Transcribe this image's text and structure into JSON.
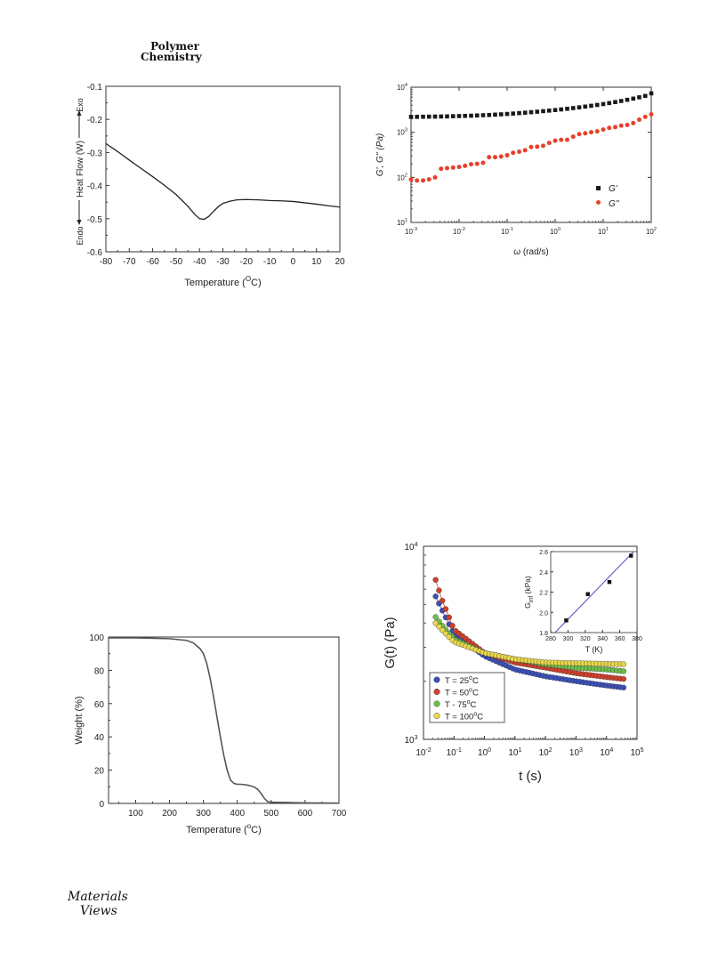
{
  "header": {
    "line1": "Polymer",
    "line2": "Chemistry"
  },
  "footer_logo": {
    "line1": "Materials",
    "line2": "Views"
  },
  "chart_data": [
    {
      "id": "dsc",
      "type": "line",
      "xlabel": "Temperature (",
      "xlabel_sup": "O",
      "xlabel_end": "C)",
      "ylabel_main": "Heat Flow (W)",
      "ylabel_exo": "Exo",
      "ylabel_endo": "Endo",
      "xlim": [
        -80,
        20
      ],
      "ylim": [
        -0.6,
        -0.1
      ],
      "x_ticks": [
        "-80",
        "-70",
        "-60",
        "-50",
        "-40",
        "-30",
        "-20",
        "-10",
        "0",
        "10",
        "20"
      ],
      "y_ticks": [
        "-0.6",
        "-0.5",
        "-0.4",
        "-0.3",
        "-0.2",
        "-0.1"
      ],
      "series": [
        {
          "x": [
            -80,
            -75,
            -70,
            -65,
            -60,
            -55,
            -50,
            -45,
            -42,
            -40,
            -38,
            -36,
            -34,
            -32,
            -30,
            -27,
            -24,
            -20,
            -15,
            -10,
            -5,
            0,
            5,
            10,
            15,
            20
          ],
          "y": [
            -0.273,
            -0.297,
            -0.323,
            -0.348,
            -0.373,
            -0.399,
            -0.427,
            -0.462,
            -0.487,
            -0.5,
            -0.502,
            -0.493,
            -0.478,
            -0.464,
            -0.454,
            -0.447,
            -0.443,
            -0.442,
            -0.443,
            -0.445,
            -0.446,
            -0.448,
            -0.452,
            -0.456,
            -0.461,
            -0.465
          ]
        }
      ]
    },
    {
      "id": "rheology",
      "type": "scatter",
      "xlabel_omega": "ω",
      "xlabel_rest": " (rad/s)",
      "ylabel": "G', G'' (Pa)",
      "log_x": true,
      "log_y": true,
      "xlim": [
        0.001,
        100
      ],
      "ylim": [
        10,
        10000
      ],
      "x_ticks": [
        {
          "b": "10",
          "e": "-3"
        },
        {
          "b": "10",
          "e": "-2"
        },
        {
          "b": "10",
          "e": "-1"
        },
        {
          "b": "10",
          "e": "0"
        },
        {
          "b": "10",
          "e": "1"
        },
        {
          "b": "10",
          "e": "2"
        }
      ],
      "y_ticks": [
        {
          "b": "10",
          "e": "1"
        },
        {
          "b": "10",
          "e": "2"
        },
        {
          "b": "10",
          "e": "3"
        },
        {
          "b": "10",
          "e": "4"
        }
      ],
      "legend": {
        "placement": "bottom-right"
      },
      "series": [
        {
          "name": "G'",
          "color": "#1a1a1a",
          "marker": "square",
          "x": [
            0.001,
            0.00133,
            0.00178,
            0.00237,
            0.00316,
            0.00422,
            0.00562,
            0.0075,
            0.01,
            0.0133,
            0.0178,
            0.0237,
            0.0316,
            0.0422,
            0.0562,
            0.075,
            0.1,
            0.133,
            0.178,
            0.237,
            0.316,
            0.422,
            0.562,
            0.75,
            1,
            1.33,
            1.78,
            2.37,
            3.16,
            4.22,
            5.62,
            7.5,
            10,
            13.3,
            17.8,
            23.7,
            31.6,
            42.2,
            56.2,
            75,
            100
          ],
          "y": [
            2200,
            2200,
            2210,
            2220,
            2230,
            2240,
            2250,
            2270,
            2290,
            2310,
            2330,
            2360,
            2390,
            2420,
            2460,
            2500,
            2550,
            2600,
            2660,
            2720,
            2790,
            2860,
            2940,
            3020,
            3110,
            3210,
            3320,
            3440,
            3570,
            3710,
            3870,
            4040,
            4230,
            4440,
            4680,
            4950,
            5250,
            5580,
            5960,
            6400,
            7300
          ]
        },
        {
          "name": "G''",
          "color": "#e8402a",
          "marker": "circle",
          "x": [
            0.001,
            0.00133,
            0.00178,
            0.00237,
            0.00316,
            0.00422,
            0.00562,
            0.0075,
            0.01,
            0.0133,
            0.0178,
            0.0237,
            0.0316,
            0.0422,
            0.0562,
            0.075,
            0.1,
            0.133,
            0.178,
            0.237,
            0.316,
            0.422,
            0.562,
            0.75,
            1,
            1.33,
            1.78,
            2.37,
            3.16,
            4.22,
            5.62,
            7.5,
            10,
            13.3,
            17.8,
            23.7,
            31.6,
            42.2,
            56.2,
            75,
            100
          ],
          "y": [
            90,
            85,
            85,
            90,
            100,
            155,
            160,
            165,
            170,
            180,
            195,
            200,
            210,
            280,
            280,
            290,
            310,
            350,
            370,
            400,
            470,
            480,
            500,
            580,
            650,
            680,
            680,
            800,
            910,
            950,
            1000,
            1050,
            1150,
            1250,
            1300,
            1400,
            1450,
            1600,
            1900,
            2200,
            2500
          ]
        }
      ]
    },
    {
      "id": "tga",
      "type": "line",
      "xlabel": "Temperature (",
      "xlabel_sup": "o",
      "xlabel_end": "C)",
      "ylabel": "Weight (%)",
      "xlim": [
        20,
        700
      ],
      "ylim": [
        0,
        100
      ],
      "x_ticks": [
        "100",
        "200",
        "300",
        "400",
        "500",
        "600",
        "700"
      ],
      "y_ticks": [
        "0",
        "20",
        "40",
        "60",
        "80",
        "100"
      ],
      "series": [
        {
          "x": [
            20,
            100,
            200,
            250,
            270,
            290,
            300,
            310,
            320,
            330,
            340,
            350,
            360,
            370,
            380,
            390,
            400,
            410,
            420,
            430,
            440,
            450,
            460,
            470,
            480,
            490,
            500,
            550,
            600,
            700
          ],
          "y": [
            99.5,
            99.5,
            99,
            98,
            96.5,
            93,
            90,
            84,
            75,
            64,
            52,
            40,
            29,
            20,
            14,
            12,
            11.5,
            11.5,
            11.3,
            11,
            10.5,
            9.8,
            8.5,
            6,
            3,
            1,
            0.7,
            0.5,
            0.3,
            0.2
          ]
        }
      ]
    },
    {
      "id": "relaxation",
      "type": "scatter",
      "xlabel": "t (s)",
      "ylabel": "G(t)  (Pa)",
      "log_x": true,
      "log_y": true,
      "xlim": [
        0.01,
        100000
      ],
      "ylim": [
        1000,
        10000
      ],
      "x_ticks": [
        {
          "b": "10",
          "e": "-2"
        },
        {
          "b": "10",
          "e": "-1"
        },
        {
          "b": "10",
          "e": "0"
        },
        {
          "b": "10",
          "e": "1"
        },
        {
          "b": "10",
          "e": "2"
        },
        {
          "b": "10",
          "e": "3"
        },
        {
          "b": "10",
          "e": "4"
        },
        {
          "b": "10",
          "e": "5"
        }
      ],
      "y_ticks": [
        {
          "b": "10",
          "e": "3"
        },
        {
          "b": "10",
          "e": "4"
        }
      ],
      "legend": {
        "placement": "bottom-left"
      },
      "series": [
        {
          "label_pre": "T = 25",
          "label_sup": "o",
          "label_post": "C",
          "color": "#3a4fb8",
          "x": [
            0.025,
            0.04,
            0.1,
            1,
            10,
            100,
            1000,
            10000,
            40000
          ],
          "y": [
            5500,
            4700,
            3500,
            2700,
            2300,
            2120,
            2000,
            1900,
            1850
          ]
        },
        {
          "label_pre": "T = 50",
          "label_sup": "o",
          "label_post": "C",
          "color": "#d0402a",
          "x": [
            0.025,
            0.04,
            0.1,
            1,
            10,
            100,
            1000,
            10000,
            40000
          ],
          "y": [
            6700,
            5300,
            3700,
            2800,
            2500,
            2350,
            2200,
            2100,
            2050
          ]
        },
        {
          "label_pre": "T - 75",
          "label_sup": "o",
          "label_post": "C",
          "color": "#6cc04a",
          "x": [
            0.025,
            0.04,
            0.1,
            1,
            10,
            100,
            1000,
            10000,
            40000
          ],
          "y": [
            4300,
            3900,
            3300,
            2800,
            2600,
            2450,
            2350,
            2300,
            2250
          ]
        },
        {
          "label_pre": "T = 100",
          "label_sup": "o",
          "label_post": "C",
          "color": "#e8d84a",
          "x": [
            0.025,
            0.04,
            0.1,
            1,
            10,
            100,
            1000,
            10000,
            40000
          ],
          "y": [
            4000,
            3700,
            3200,
            2800,
            2600,
            2500,
            2480,
            2460,
            2450
          ]
        }
      ],
      "inset": {
        "xlabel": "T (K)",
        "ylabel_base": "G",
        "ylabel_sub": "inf",
        "ylabel_unit": " (kPa)",
        "xlim": [
          280,
          380
        ],
        "ylim": [
          1.8,
          2.6
        ],
        "x_ticks": [
          "280",
          "300",
          "320",
          "340",
          "360",
          "380"
        ],
        "y_ticks": [
          "1.8",
          "2.0",
          "2.2",
          "2.4",
          "2.6"
        ],
        "points": {
          "x": [
            298,
            323,
            348,
            373
          ],
          "y": [
            1.92,
            2.18,
            2.3,
            2.56
          ]
        },
        "fit": {
          "x": [
            285,
            376
          ],
          "y": [
            1.8,
            2.6
          ]
        }
      }
    }
  ]
}
